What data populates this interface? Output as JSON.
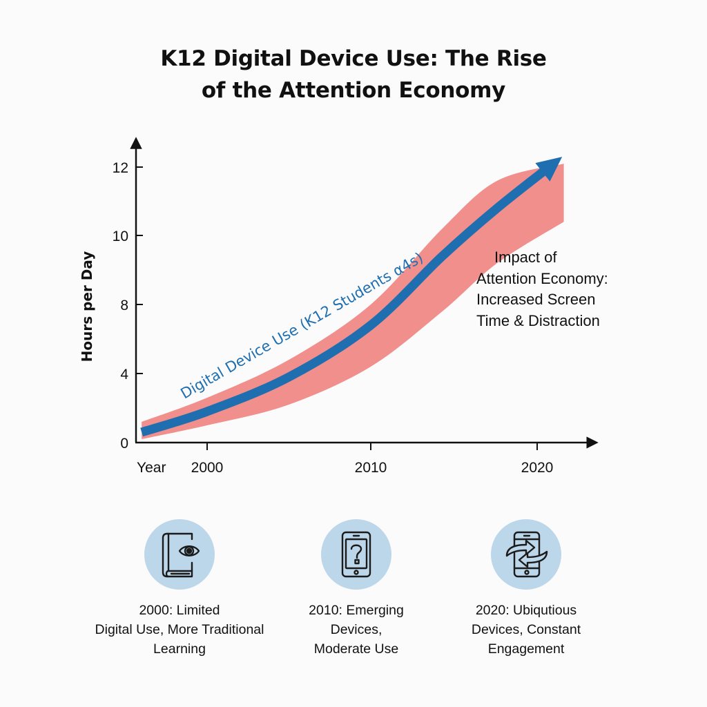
{
  "title": {
    "line1": "K12 Digital Device Use: The Rise",
    "line2": "of the Attention Economy"
  },
  "annotation": {
    "lines": [
      "Impact of",
      "Attention Economy:",
      "Increased Screen",
      "Time & Distraction"
    ]
  },
  "milestones": [
    {
      "icon": "book-eye-icon",
      "lines": [
        "2000: Limited",
        "Digital Use, More Traditional",
        "Learning"
      ]
    },
    {
      "icon": "tablet-question-icon",
      "lines": [
        "2010: Emerging",
        "Devices,",
        "Moderate Use"
      ]
    },
    {
      "icon": "phone-exchange-icon",
      "lines": [
        "2020: Ubiqutious",
        "Devices, Constant",
        "Engagement"
      ]
    }
  ],
  "colors": {
    "line": "#1f6fb0",
    "band": "#f08f8c",
    "badge": "#bcd6ea",
    "axis": "#111111"
  },
  "chart_data": {
    "type": "line",
    "title": "K12 Digital Device Use: The Rise of the Attention Economy",
    "xlabel": "Year",
    "ylabel": "Hours per Day",
    "x_ticks": [
      2000,
      2010,
      2020
    ],
    "y_ticks": [
      0,
      4,
      8,
      10,
      12
    ],
    "xlim": [
      1996,
      2023
    ],
    "ylim": [
      0,
      13
    ],
    "grid": false,
    "series": [
      {
        "name": "Digital Device Use (K12 Students α4s)",
        "label": "Digital Device Use (K12 Students α4s)",
        "x": [
          1996,
          2000,
          2005,
          2010,
          2014.3,
          2017.6,
          2021.5
        ],
        "y": [
          0.6,
          1.8,
          3.8,
          6.8,
          9.4,
          10.8,
          12.3
        ]
      }
    ],
    "band": {
      "name": "Impact of Attention Economy",
      "x": [
        1996,
        2000,
        2005,
        2010,
        2014.3,
        2017.6,
        2021.6
      ],
      "upper": [
        1.2,
        2.6,
        4.8,
        8.0,
        10.2,
        11.6,
        12.1
      ],
      "lower": [
        0.2,
        1.0,
        2.2,
        4.4,
        7.6,
        9.2,
        10.4
      ]
    },
    "annotations": [
      "Impact of Attention Economy: Increased Screen Time & Distraction"
    ]
  }
}
